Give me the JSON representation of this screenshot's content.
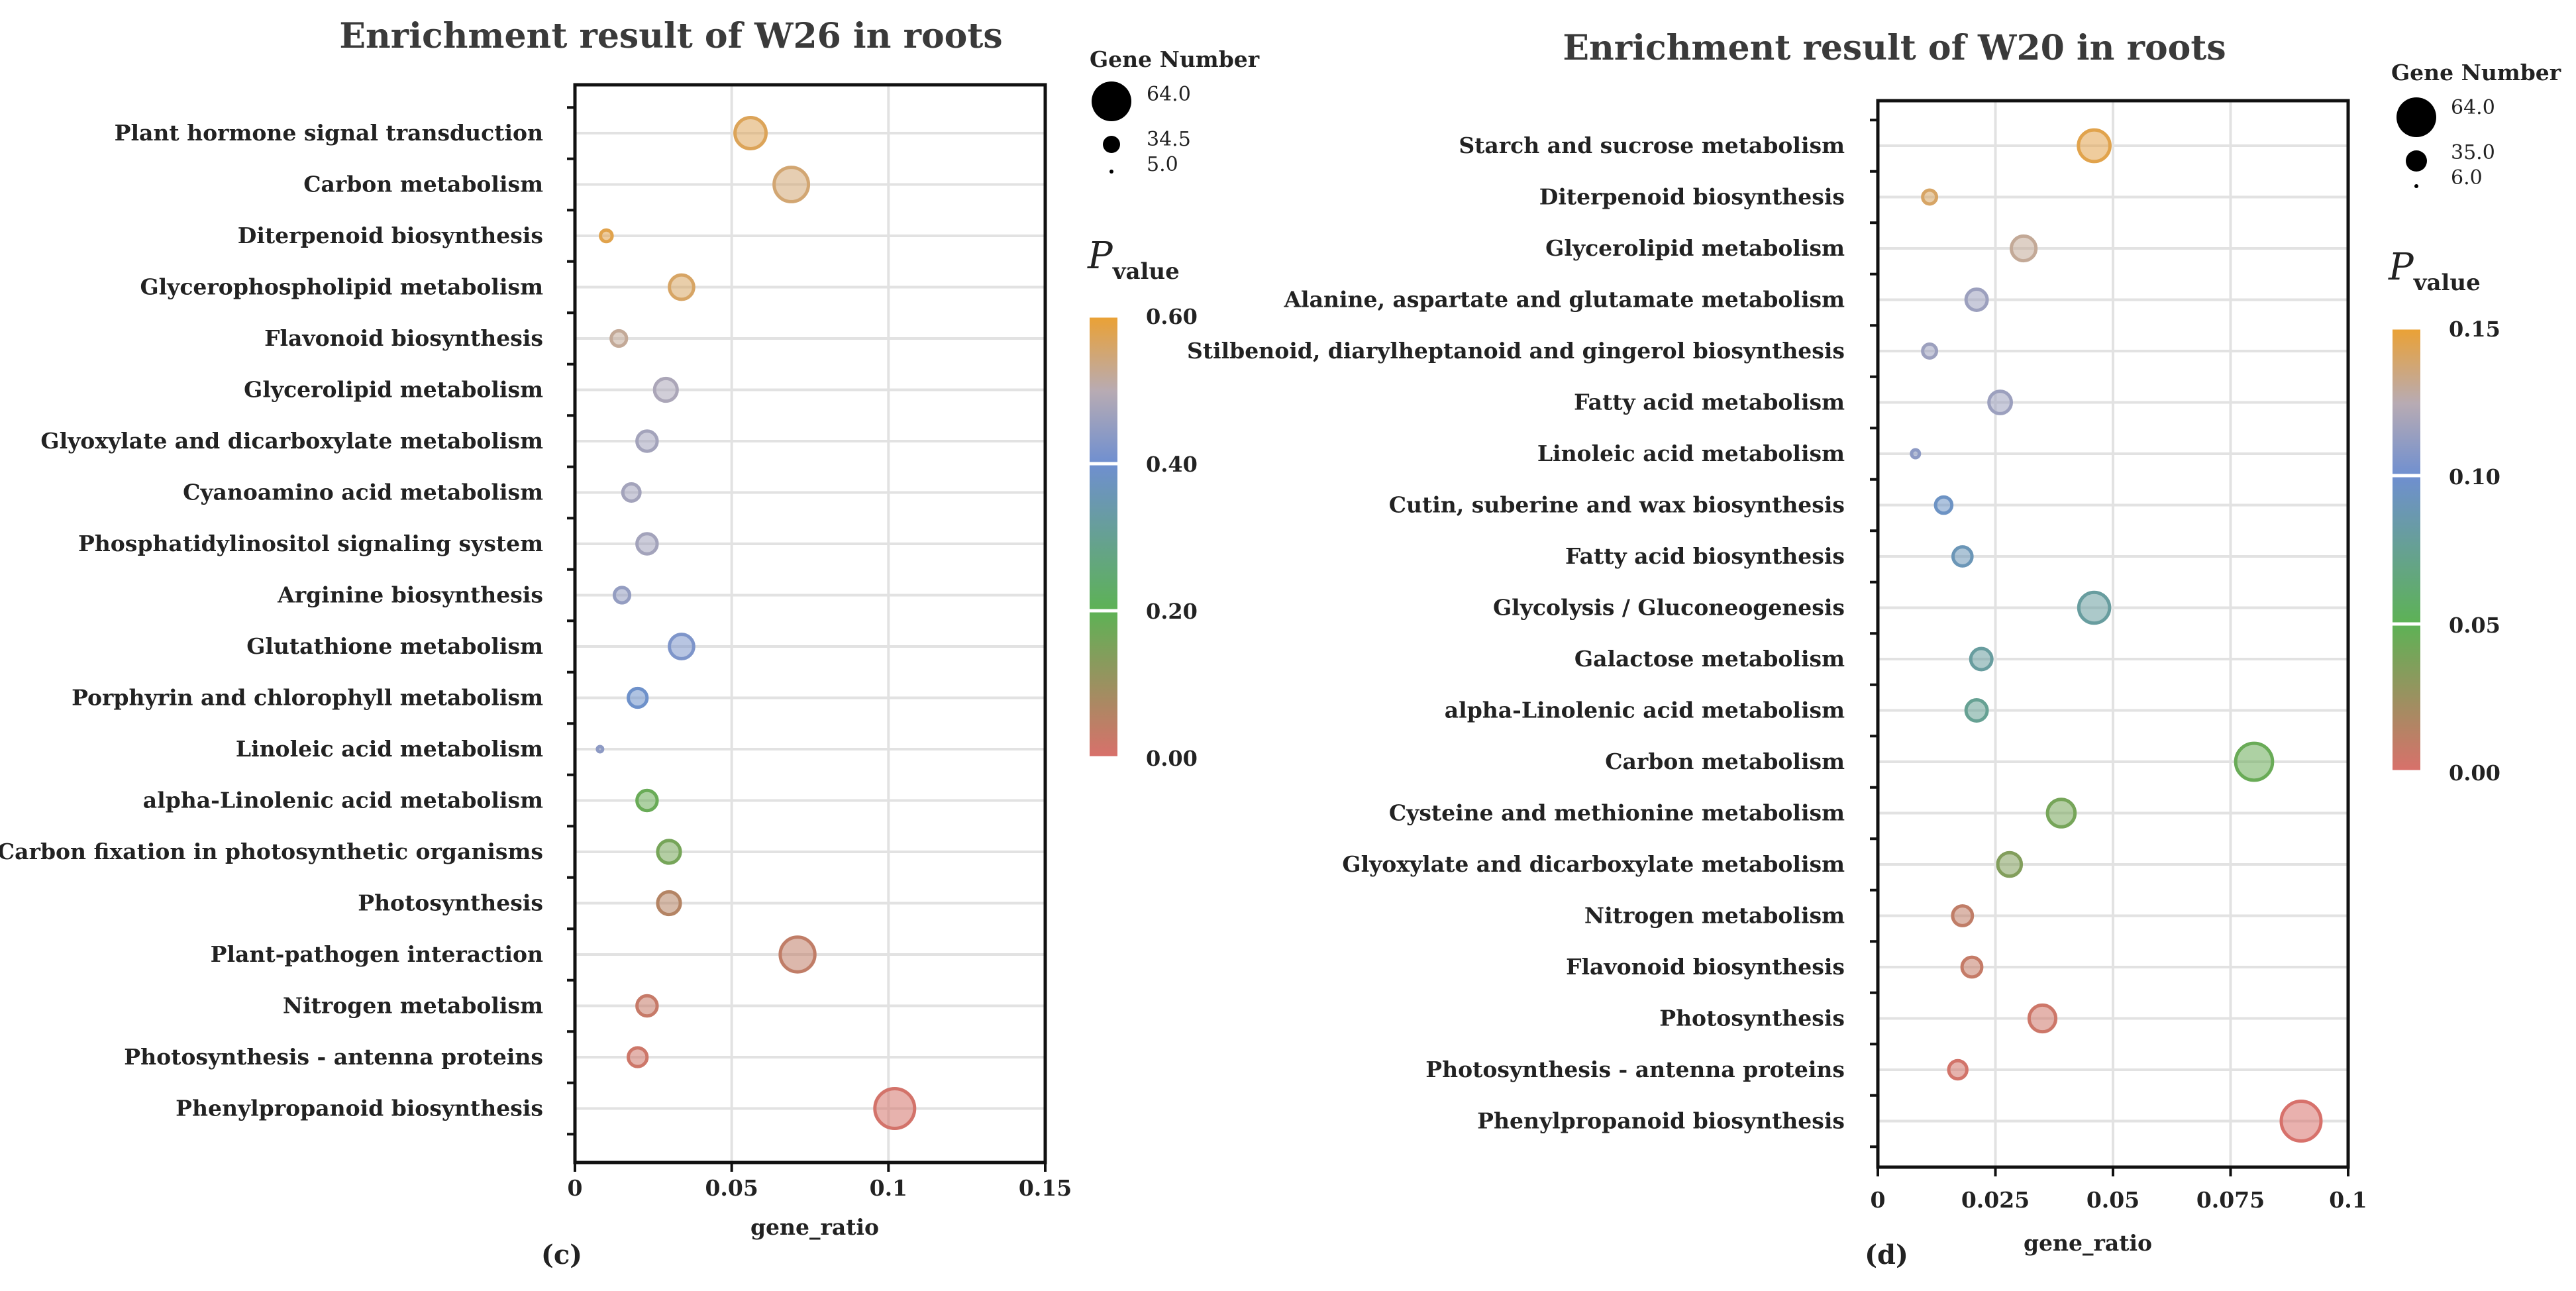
{
  "colors": {
    "low": "#d9706b",
    "lowmid": "#5db255",
    "mid": "#6f8fd0",
    "midhigh": "#b8abb3",
    "high": "#eba133",
    "grid": "#e2e2e2",
    "axis": "#111111"
  },
  "chart_data": [
    {
      "type": "scatter",
      "panel_label": "(c)",
      "title": "Enrichment result of W26 in roots",
      "xlabel": "gene_ratio",
      "x_ticks": [
        "0",
        "0.05",
        "0.1",
        "0.15"
      ],
      "x_tick_values": [
        0,
        0.05,
        0.1,
        0.15
      ],
      "xlim": [
        0,
        0.15
      ],
      "size_legend": {
        "title": "Gene Number",
        "labels": [
          "64.0",
          "34.5",
          "5.0"
        ],
        "values": [
          64,
          34.5,
          5
        ]
      },
      "color_legend": {
        "title_p": "P",
        "title_sub": "value",
        "labels": [
          "0.60",
          "0.40",
          "0.20",
          "0.00"
        ],
        "values": [
          0.6,
          0.4,
          0.2,
          0
        ],
        "max": 0.6
      },
      "terms": [
        {
          "name": "Plant hormone signal transduction",
          "gene_ratio": 0.056,
          "gene_number": 38,
          "p_value": 0.57
        },
        {
          "name": "Carbon metabolism",
          "gene_ratio": 0.069,
          "gene_number": 47,
          "p_value": 0.55
        },
        {
          "name": "Diterpenoid biosynthesis",
          "gene_ratio": 0.01,
          "gene_number": 7,
          "p_value": 0.58
        },
        {
          "name": "Glycerophospholipid metabolism",
          "gene_ratio": 0.034,
          "gene_number": 23,
          "p_value": 0.56
        },
        {
          "name": "Flavonoid biosynthesis",
          "gene_ratio": 0.014,
          "gene_number": 10,
          "p_value": 0.52
        },
        {
          "name": "Glycerolipid metabolism",
          "gene_ratio": 0.029,
          "gene_number": 20,
          "p_value": 0.48
        },
        {
          "name": "Glyoxylate and dicarboxylate metabolism",
          "gene_ratio": 0.023,
          "gene_number": 16,
          "p_value": 0.47
        },
        {
          "name": "Cyanoamino acid metabolism",
          "gene_ratio": 0.018,
          "gene_number": 12,
          "p_value": 0.47
        },
        {
          "name": "Phosphatidylinositol signaling system",
          "gene_ratio": 0.023,
          "gene_number": 16,
          "p_value": 0.47
        },
        {
          "name": "Arginine biosynthesis",
          "gene_ratio": 0.015,
          "gene_number": 10,
          "p_value": 0.45
        },
        {
          "name": "Glutathione metabolism",
          "gene_ratio": 0.034,
          "gene_number": 23,
          "p_value": 0.42
        },
        {
          "name": "Porphyrin and chlorophyll metabolism",
          "gene_ratio": 0.02,
          "gene_number": 14,
          "p_value": 0.39
        },
        {
          "name": "Linoleic acid metabolism",
          "gene_ratio": 0.008,
          "gene_number": 5,
          "p_value": 0.44
        },
        {
          "name": "alpha-Linolenic acid metabolism",
          "gene_ratio": 0.023,
          "gene_number": 16,
          "p_value": 0.18
        },
        {
          "name": "Carbon fixation in photosynthetic organisms",
          "gene_ratio": 0.03,
          "gene_number": 20,
          "p_value": 0.16
        },
        {
          "name": "Photosynthesis",
          "gene_ratio": 0.03,
          "gene_number": 20,
          "p_value": 0.06
        },
        {
          "name": "Plant-pathogen interaction",
          "gene_ratio": 0.071,
          "gene_number": 48,
          "p_value": 0.04
        },
        {
          "name": "Nitrogen metabolism",
          "gene_ratio": 0.023,
          "gene_number": 16,
          "p_value": 0.03
        },
        {
          "name": "Photosynthesis - antenna proteins",
          "gene_ratio": 0.02,
          "gene_number": 14,
          "p_value": 0.02
        },
        {
          "name": "Phenylpropanoid biosynthesis",
          "gene_ratio": 0.102,
          "gene_number": 64,
          "p_value": 0.01
        }
      ]
    },
    {
      "type": "scatter",
      "panel_label": "(d)",
      "title": "Enrichment result of W20 in roots",
      "xlabel": "gene_ratio",
      "x_ticks": [
        "0",
        "0.025",
        "0.05",
        "0.075",
        "0.1"
      ],
      "x_tick_values": [
        0,
        0.025,
        0.05,
        0.075,
        0.1
      ],
      "xlim": [
        0,
        0.1
      ],
      "size_legend": {
        "title": "Gene Number",
        "labels": [
          "64.0",
          "35.0",
          "6.0"
        ],
        "values": [
          64,
          35,
          6
        ]
      },
      "color_legend": {
        "title_p": "P",
        "title_sub": "value",
        "labels": [
          "0.15",
          "0.10",
          "0.05",
          "0.00"
        ],
        "values": [
          0.15,
          0.1,
          0.05,
          0
        ],
        "max": 0.15
      },
      "terms": [
        {
          "name": "Starch and sucrose metabolism",
          "gene_ratio": 0.046,
          "gene_number": 38,
          "p_value": 0.145
        },
        {
          "name": "Diterpenoid biosynthesis",
          "gene_ratio": 0.011,
          "gene_number": 8,
          "p_value": 0.14
        },
        {
          "name": "Glycerolipid metabolism",
          "gene_ratio": 0.031,
          "gene_number": 22,
          "p_value": 0.13
        },
        {
          "name": "Alanine, aspartate and glutamate metabolism",
          "gene_ratio": 0.021,
          "gene_number": 16,
          "p_value": 0.115
        },
        {
          "name": "Stilbenoid, diarylheptanoid and gingerol biosynthesis",
          "gene_ratio": 0.011,
          "gene_number": 8,
          "p_value": 0.115
        },
        {
          "name": "Fatty acid metabolism",
          "gene_ratio": 0.026,
          "gene_number": 18,
          "p_value": 0.115
        },
        {
          "name": "Linoleic acid metabolism",
          "gene_ratio": 0.008,
          "gene_number": 6,
          "p_value": 0.11
        },
        {
          "name": "Cutin, suberine and wax biosynthesis",
          "gene_ratio": 0.014,
          "gene_number": 10,
          "p_value": 0.095
        },
        {
          "name": "Fatty acid biosynthesis",
          "gene_ratio": 0.018,
          "gene_number": 13,
          "p_value": 0.09
        },
        {
          "name": "Glycolysis / Gluconeogenesis",
          "gene_ratio": 0.046,
          "gene_number": 36,
          "p_value": 0.08
        },
        {
          "name": "Galactose metabolism",
          "gene_ratio": 0.022,
          "gene_number": 16,
          "p_value": 0.08
        },
        {
          "name": "alpha-Linolenic acid metabolism",
          "gene_ratio": 0.021,
          "gene_number": 16,
          "p_value": 0.075
        },
        {
          "name": "Carbon metabolism",
          "gene_ratio": 0.08,
          "gene_number": 54,
          "p_value": 0.045
        },
        {
          "name": "Cysteine and methionine metabolism",
          "gene_ratio": 0.039,
          "gene_number": 28,
          "p_value": 0.04
        },
        {
          "name": "Glyoxylate and dicarboxylate metabolism",
          "gene_ratio": 0.028,
          "gene_number": 20,
          "p_value": 0.035
        },
        {
          "name": "Nitrogen metabolism",
          "gene_ratio": 0.018,
          "gene_number": 14,
          "p_value": 0.01
        },
        {
          "name": "Flavonoid biosynthesis",
          "gene_ratio": 0.02,
          "gene_number": 14,
          "p_value": 0.008
        },
        {
          "name": "Photosynthesis",
          "gene_ratio": 0.035,
          "gene_number": 26,
          "p_value": 0.005
        },
        {
          "name": "Photosynthesis - antenna proteins",
          "gene_ratio": 0.017,
          "gene_number": 12,
          "p_value": 0.003
        },
        {
          "name": "Phenylpropanoid biosynthesis",
          "gene_ratio": 0.09,
          "gene_number": 64,
          "p_value": 0.001
        }
      ]
    }
  ]
}
